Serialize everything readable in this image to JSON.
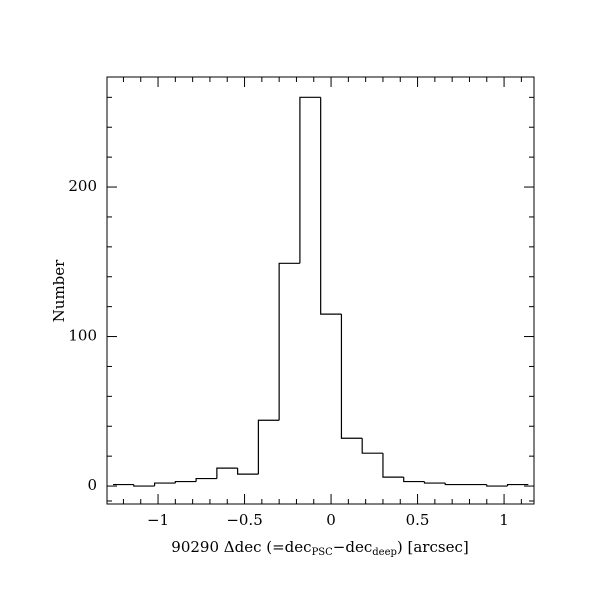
{
  "chart_data": {
    "type": "histogram",
    "bins": [
      -1.26,
      -1.14,
      -1.02,
      -0.9,
      -0.78,
      -0.66,
      -0.54,
      -0.42,
      -0.3,
      -0.18,
      -0.06,
      0.06,
      0.18,
      0.3,
      0.42,
      0.54,
      0.66,
      0.78,
      0.9,
      1.02,
      1.14
    ],
    "values": [
      1,
      0,
      2,
      3,
      5,
      12,
      8,
      44,
      149,
      260,
      115,
      32,
      22,
      6,
      3,
      2,
      1,
      1,
      0,
      1
    ],
    "color": "#000000",
    "xlim": [
      -1.295,
      1.173
    ],
    "ylim": [
      -12,
      273.6
    ],
    "xticks": [
      {
        "value": -1,
        "label": "−1"
      },
      {
        "value": -0.5,
        "label": "−0.5"
      },
      0,
      0.5,
      1
    ],
    "yticks": [
      0,
      100,
      200
    ],
    "xticks_minor": [
      -1.2,
      -1.1,
      -0.9,
      -0.8,
      -0.7,
      -0.6,
      -0.4,
      -0.3,
      -0.2,
      -0.1,
      0.1,
      0.2,
      0.3,
      0.4,
      0.6,
      0.7,
      0.8,
      0.9,
      1.1
    ],
    "yticks_minor": [
      -10,
      20,
      40,
      60,
      80,
      120,
      140,
      160,
      180,
      220,
      240,
      260
    ],
    "xlabel_parts": [
      "90290 Δdec (=dec",
      "PSC",
      "−dec",
      "deep",
      ") [arcsec]"
    ],
    "ylabel": "Number"
  }
}
